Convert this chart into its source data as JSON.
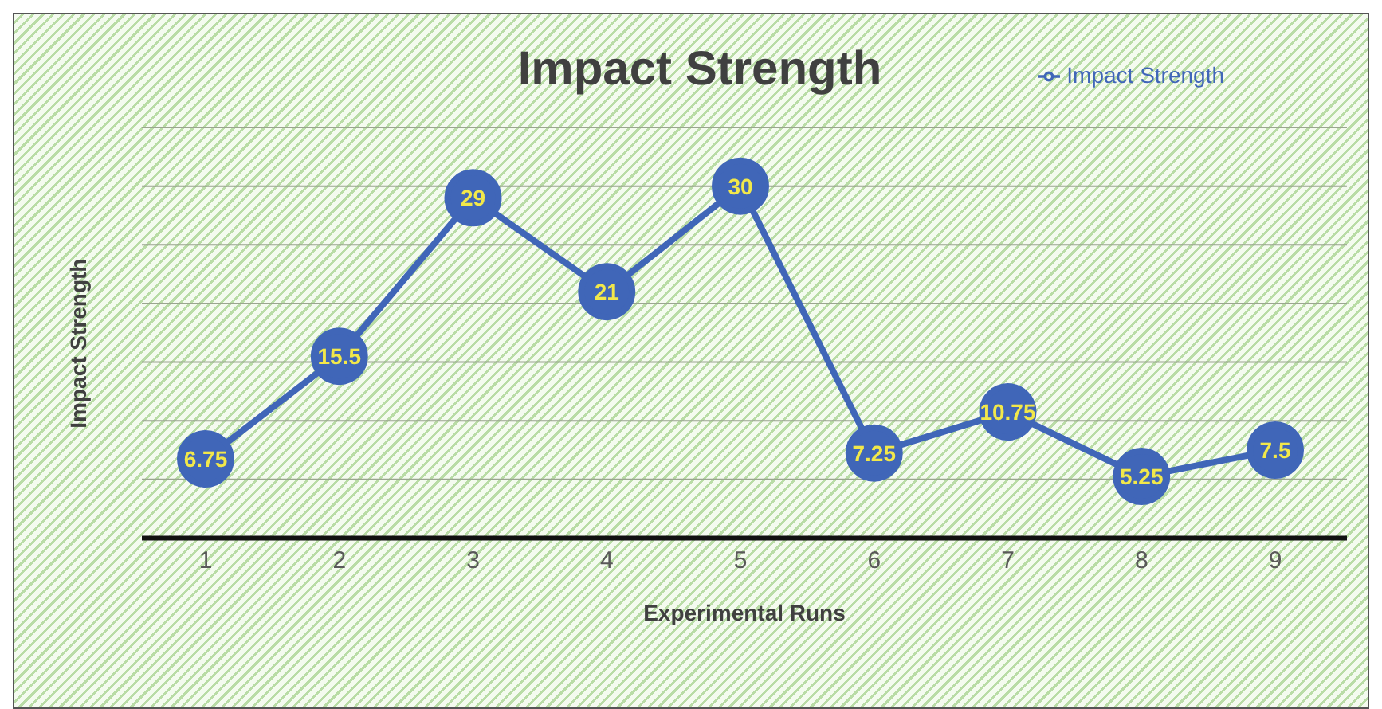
{
  "chart_data": {
    "type": "line",
    "title": "Impact Strength",
    "xlabel": "Experimental Runs",
    "ylabel": "Impact Strength",
    "categories": [
      "1",
      "2",
      "3",
      "4",
      "5",
      "6",
      "7",
      "8",
      "9"
    ],
    "series": [
      {
        "name": "Impact Strength",
        "color": "#4066b8",
        "values": [
          6.75,
          15.5,
          29,
          21,
          30,
          7.25,
          10.75,
          5.25,
          7.5
        ]
      }
    ],
    "ylim": [
      0,
      35
    ],
    "tick_labels": "x",
    "grid": "y",
    "legend": "top right",
    "marker": "circle",
    "line_style": "solid",
    "data_labels": true
  }
}
